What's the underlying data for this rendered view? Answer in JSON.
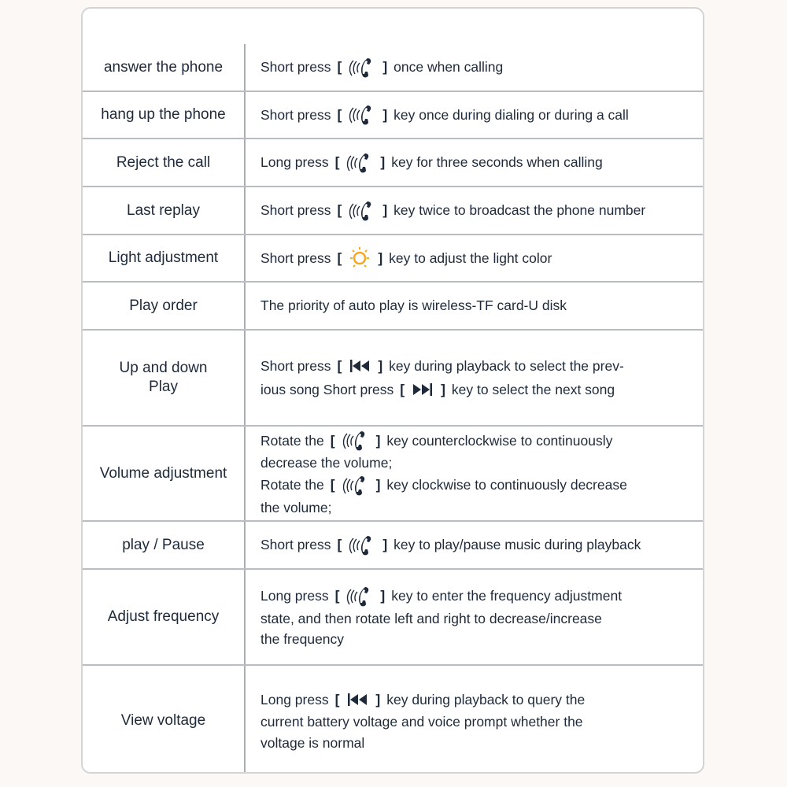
{
  "colors": {
    "text": "#1e2a3a",
    "border": "#b9bdc2",
    "sun": "#f5a623"
  },
  "rows": [
    {
      "label": "answer the phone",
      "top": 45,
      "h": 61,
      "lines": [
        [
          {
            "t": "Short press"
          },
          {
            "b": "["
          },
          {
            "icon": "phone"
          },
          {
            "b": "]"
          },
          {
            "t": "once when calling"
          }
        ]
      ]
    },
    {
      "label": "hang up the phone",
      "top": 106,
      "h": 60,
      "lines": [
        [
          {
            "t": "Short press"
          },
          {
            "b": "["
          },
          {
            "icon": "phone"
          },
          {
            "b": "]"
          },
          {
            "t": "key once during dialing or during a call"
          }
        ]
      ]
    },
    {
      "label": "Reject the call",
      "top": 166,
      "h": 61,
      "lines": [
        [
          {
            "t": "Long press"
          },
          {
            "b": "["
          },
          {
            "icon": "phone"
          },
          {
            "b": "]"
          },
          {
            "t": "key for three seconds when calling"
          }
        ]
      ]
    },
    {
      "label": "Last replay",
      "top": 227,
      "h": 61,
      "lines": [
        [
          {
            "t": "Short press"
          },
          {
            "b": "["
          },
          {
            "icon": "phone"
          },
          {
            "b": "]"
          },
          {
            "t": "key twice to broadcast the phone number"
          }
        ]
      ]
    },
    {
      "label": "Light adjustment",
      "top": 288,
      "h": 60,
      "lines": [
        [
          {
            "t": "Short press"
          },
          {
            "b": "["
          },
          {
            "icon": "sun"
          },
          {
            "b": "]"
          },
          {
            "t": "key to adjust the light color"
          }
        ]
      ]
    },
    {
      "label": "Play order",
      "top": 348,
      "h": 61,
      "lines": [
        [
          {
            "t": "The priority of auto play is wireless-TF card-U disk"
          }
        ]
      ]
    },
    {
      "label": "Up and down\nPlay",
      "top": 409,
      "h": 122,
      "lines": [
        [
          {
            "t": "Short press"
          },
          {
            "b": "["
          },
          {
            "icon": "prev"
          },
          {
            "b": "]"
          },
          {
            "t": "key during playback to select the prev-"
          }
        ],
        [
          {
            "t": "ious song Short press"
          },
          {
            "b": "["
          },
          {
            "icon": "next"
          },
          {
            "b": "]"
          },
          {
            "t": "key to select the next song"
          }
        ]
      ]
    },
    {
      "label": "Volume adjustment",
      "top": 531,
      "h": 121,
      "lines": [
        [
          {
            "t": "Rotate the"
          },
          {
            "b": "["
          },
          {
            "icon": "phone"
          },
          {
            "b": "]"
          },
          {
            "t": "key counterclockwise to continuously"
          }
        ],
        [
          {
            "t": "decrease the volume;"
          }
        ],
        [
          {
            "t": "Rotate the"
          },
          {
            "b": "["
          },
          {
            "icon": "phone"
          },
          {
            "b": "]"
          },
          {
            "t": "key clockwise to continuously decrease"
          }
        ],
        [
          {
            "t": "the volume;"
          }
        ]
      ]
    },
    {
      "label": "play / Pause",
      "top": 652,
      "h": 61,
      "lines": [
        [
          {
            "t": "Short press"
          },
          {
            "b": "["
          },
          {
            "icon": "phone"
          },
          {
            "b": "]"
          },
          {
            "t": "key to play/pause music during playback"
          }
        ]
      ]
    },
    {
      "label": "Adjust frequency",
      "top": 713,
      "h": 122,
      "lines": [
        [
          {
            "t": "Long press"
          },
          {
            "b": "["
          },
          {
            "icon": "phone"
          },
          {
            "b": "]"
          },
          {
            "t": "key to enter the frequency adjustment"
          }
        ],
        [
          {
            "t": "state, and then rotate left and right to decrease/increase"
          }
        ],
        [
          {
            "t": "the frequency"
          }
        ]
      ]
    },
    {
      "label": "View voltage",
      "top": 835,
      "h": 139,
      "lines": [
        [
          {
            "t": "Long press"
          },
          {
            "b": "["
          },
          {
            "icon": "prev"
          },
          {
            "b": "]"
          },
          {
            "t": "key during playback to query the"
          }
        ],
        [
          {
            "t": "current battery voltage and voice prompt whether the"
          }
        ],
        [
          {
            "t": "voltage is normal"
          }
        ]
      ]
    }
  ]
}
